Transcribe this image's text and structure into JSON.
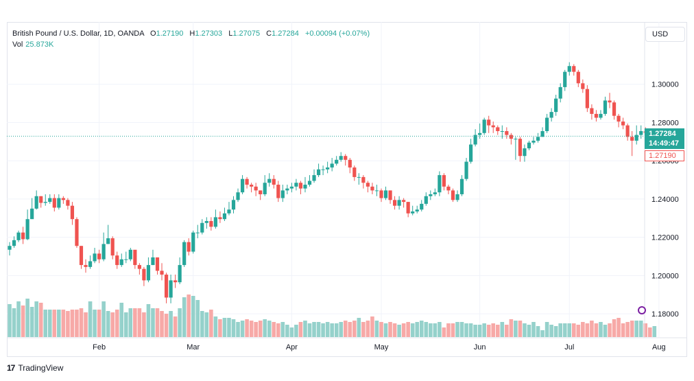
{
  "header": {
    "symbol": "British Pound / U.S. Dollar, 1D, OANDA",
    "open_label": "O",
    "open_value": "1.27190",
    "high_label": "H",
    "high_value": "1.27303",
    "low_label": "L",
    "low_value": "1.27075",
    "close_label": "C",
    "close_value": "1.27284",
    "change": "+0.00094 (+0.07%)"
  },
  "volume": {
    "label": "Vol",
    "value": "25.873K"
  },
  "currency_button": "USD",
  "price_tags": {
    "last": "1.27284",
    "countdown": "14:49:47",
    "open": "1.27190"
  },
  "brand": {
    "logo": "17",
    "name": "TradingView"
  },
  "colors": {
    "up": "#26a69a",
    "down": "#ef5350",
    "up_volume": "#95d1cb",
    "down_volume": "#f7a9a7",
    "grid": "#f0f3fa"
  },
  "chart_data": {
    "type": "candlestick",
    "ylim": [
      1.1675,
      1.3225
    ],
    "y_ticks": [
      "1.18000",
      "1.20000",
      "1.22000",
      "1.24000",
      "1.26000",
      "1.28000",
      "1.30000"
    ],
    "x_ticks": [
      "Feb",
      "Mar",
      "Apr",
      "May",
      "Jun",
      "Jul",
      "Aug"
    ],
    "x_tick_indices": [
      20,
      41,
      63,
      83,
      105,
      125,
      145
    ],
    "last_price": 1.27284,
    "closes": [
      1.2155,
      1.2185,
      1.2225,
      1.219,
      1.2295,
      1.235,
      1.2415,
      1.238,
      1.2385,
      1.2405,
      1.2355,
      1.2405,
      1.2395,
      1.2365,
      1.2295,
      1.2155,
      1.2055,
      1.2045,
      1.2075,
      1.2115,
      1.2085,
      1.2165,
      1.2195,
      1.2105,
      1.2055,
      1.2085,
      1.2085,
      1.2135,
      1.2055,
      1.2035,
      1.1975,
      1.2055,
      1.2095,
      1.2025,
      1.2005,
      1.1885,
      1.1975,
      1.1965,
      1.2055,
      1.2175,
      1.2125,
      1.2225,
      1.2225,
      1.2275,
      1.2285,
      1.2255,
      1.2305,
      1.2295,
      1.2325,
      1.2345,
      1.2395,
      1.2435,
      1.2505,
      1.2475,
      1.2465,
      1.2445,
      1.2425,
      1.2485,
      1.2505,
      1.2475,
      1.2405,
      1.2445,
      1.2455,
      1.2465,
      1.2485,
      1.2455,
      1.2475,
      1.2495,
      1.2525,
      1.2555,
      1.2555,
      1.2565,
      1.2585,
      1.2605,
      1.2625,
      1.2605,
      1.2565,
      1.2515,
      1.2515,
      1.2485,
      1.2465,
      1.2445,
      1.2445,
      1.2405,
      1.2445,
      1.2395,
      1.2365,
      1.2395,
      1.2385,
      1.2325,
      1.2335,
      1.2345,
      1.2375,
      1.2415,
      1.2425,
      1.2435,
      1.2525,
      1.2465,
      1.2445,
      1.2395,
      1.2425,
      1.2505,
      1.2595,
      1.2685,
      1.2735,
      1.2745,
      1.2815,
      1.2785,
      1.2775,
      1.2755,
      1.2755,
      1.2735,
      1.2715,
      1.2715,
      1.2625,
      1.2665,
      1.2695,
      1.2705,
      1.2725,
      1.2755,
      1.2825,
      1.2855,
      1.2925,
      1.2985,
      1.3065,
      1.3095,
      1.3065,
      1.3005,
      1.2975,
      1.2875,
      1.2845,
      1.2825,
      1.2845,
      1.2915,
      1.2905,
      1.2835,
      1.2805,
      1.2785,
      1.2725,
      1.2705,
      1.2735,
      1.2755,
      1.2745,
      1.2719,
      1.2728
    ],
    "highs": [
      1.2175,
      1.2205,
      1.2235,
      1.2255,
      1.2345,
      1.2405,
      1.2445,
      1.2415,
      1.2425,
      1.2425,
      1.2425,
      1.2425,
      1.2415,
      1.2405,
      1.2385,
      1.2305,
      1.2155,
      1.2085,
      1.2105,
      1.2145,
      1.2135,
      1.2225,
      1.2265,
      1.2205,
      1.2125,
      1.2115,
      1.2125,
      1.2145,
      1.2125,
      1.2065,
      1.2045,
      1.2095,
      1.2135,
      1.2095,
      1.2065,
      1.2015,
      1.2005,
      1.2005,
      1.2095,
      1.2185,
      1.2195,
      1.2235,
      1.2265,
      1.2295,
      1.2305,
      1.2305,
      1.2345,
      1.2335,
      1.2355,
      1.2385,
      1.2415,
      1.2455,
      1.2525,
      1.2515,
      1.2485,
      1.2485,
      1.2445,
      1.2525,
      1.2535,
      1.2525,
      1.2495,
      1.2475,
      1.2475,
      1.2485,
      1.2505,
      1.2495,
      1.2515,
      1.2525,
      1.2555,
      1.2585,
      1.2575,
      1.2595,
      1.2615,
      1.2625,
      1.2645,
      1.2635,
      1.2615,
      1.2575,
      1.2535,
      1.2525,
      1.2495,
      1.2485,
      1.2475,
      1.2455,
      1.2465,
      1.2445,
      1.2415,
      1.2415,
      1.2405,
      1.2385,
      1.2365,
      1.2365,
      1.2395,
      1.2435,
      1.2445,
      1.2455,
      1.2545,
      1.2535,
      1.2475,
      1.2455,
      1.2445,
      1.2525,
      1.2615,
      1.2715,
      1.2765,
      1.2795,
      1.2825,
      1.2835,
      1.2805,
      1.2785,
      1.2785,
      1.2775,
      1.2745,
      1.2725,
      1.2725,
      1.2685,
      1.2705,
      1.2725,
      1.2745,
      1.2775,
      1.2845,
      1.2875,
      1.2945,
      1.3005,
      1.3075,
      1.3115,
      1.3105,
      1.3075,
      1.3025,
      1.2995,
      1.2895,
      1.2865,
      1.2865,
      1.2935,
      1.2955,
      1.2915,
      1.2845,
      1.2825,
      1.2795,
      1.2755,
      1.2785,
      1.2785,
      1.2775,
      1.2765,
      1.2735
    ],
    "lows": [
      1.2105,
      1.2145,
      1.2175,
      1.2165,
      1.2185,
      1.2335,
      1.2345,
      1.2355,
      1.2365,
      1.2375,
      1.2335,
      1.2345,
      1.2375,
      1.2345,
      1.2265,
      1.2145,
      1.2035,
      1.2015,
      1.2035,
      1.2065,
      1.2065,
      1.2075,
      1.2165,
      1.2085,
      1.2035,
      1.2045,
      1.2065,
      1.2075,
      1.2035,
      1.2005,
      1.1945,
      1.1965,
      1.2055,
      1.2005,
      1.1975,
      1.1855,
      1.1855,
      1.1935,
      1.1955,
      1.2045,
      1.2105,
      1.2115,
      1.2195,
      1.2215,
      1.2245,
      1.2235,
      1.2245,
      1.2275,
      1.2285,
      1.2315,
      1.2325,
      1.2385,
      1.2425,
      1.2455,
      1.2435,
      1.2415,
      1.2395,
      1.2415,
      1.2465,
      1.2455,
      1.2385,
      1.2385,
      1.2425,
      1.2435,
      1.2445,
      1.2425,
      1.2435,
      1.2465,
      1.2485,
      1.2515,
      1.2525,
      1.2535,
      1.2545,
      1.2575,
      1.2595,
      1.2575,
      1.2535,
      1.2495,
      1.2475,
      1.2455,
      1.2435,
      1.2425,
      1.2415,
      1.2385,
      1.2395,
      1.2375,
      1.2345,
      1.2345,
      1.2355,
      1.2305,
      1.2315,
      1.2325,
      1.2335,
      1.2365,
      1.2395,
      1.2415,
      1.2415,
      1.2445,
      1.2425,
      1.2385,
      1.2385,
      1.2415,
      1.2495,
      1.2585,
      1.2675,
      1.2715,
      1.2735,
      1.2745,
      1.2745,
      1.2735,
      1.2715,
      1.2715,
      1.2685,
      1.2605,
      1.2595,
      1.2595,
      1.2655,
      1.2685,
      1.2695,
      1.2725,
      1.2745,
      1.2805,
      1.2835,
      1.2905,
      1.2965,
      1.3045,
      1.3045,
      1.2985,
      1.2955,
      1.2855,
      1.2815,
      1.2805,
      1.2815,
      1.2835,
      1.2875,
      1.2815,
      1.2775,
      1.2765,
      1.2705,
      1.2625,
      1.2685,
      1.2715,
      1.2715,
      1.2705,
      1.2705
    ],
    "volume_ratio": [
      0.48,
      0.42,
      0.52,
      0.46,
      0.56,
      0.44,
      0.52,
      0.5,
      0.4,
      0.4,
      0.4,
      0.4,
      0.4,
      0.38,
      0.4,
      0.4,
      0.42,
      0.36,
      0.52,
      0.4,
      0.4,
      0.52,
      0.38,
      0.36,
      0.4,
      0.5,
      0.36,
      0.42,
      0.42,
      0.42,
      0.36,
      0.48,
      0.42,
      0.42,
      0.38,
      0.34,
      0.38,
      0.3,
      0.42,
      0.58,
      0.62,
      0.6,
      0.54,
      0.38,
      0.36,
      0.4,
      0.3,
      0.26,
      0.28,
      0.28,
      0.26,
      0.22,
      0.24,
      0.26,
      0.24,
      0.22,
      0.24,
      0.26,
      0.24,
      0.22,
      0.2,
      0.22,
      0.18,
      0.14,
      0.18,
      0.22,
      0.24,
      0.2,
      0.22,
      0.22,
      0.2,
      0.22,
      0.2,
      0.2,
      0.22,
      0.24,
      0.22,
      0.24,
      0.28,
      0.22,
      0.24,
      0.3,
      0.24,
      0.22,
      0.2,
      0.22,
      0.2,
      0.18,
      0.2,
      0.22,
      0.2,
      0.22,
      0.24,
      0.22,
      0.2,
      0.2,
      0.22,
      0.14,
      0.2,
      0.2,
      0.22,
      0.22,
      0.2,
      0.2,
      0.18,
      0.18,
      0.2,
      0.18,
      0.2,
      0.18,
      0.22,
      0.18,
      0.26,
      0.24,
      0.24,
      0.2,
      0.18,
      0.22,
      0.16,
      0.1,
      0.22,
      0.18,
      0.16,
      0.2,
      0.2,
      0.2,
      0.2,
      0.18,
      0.22,
      0.2,
      0.24,
      0.2,
      0.22,
      0.18,
      0.2,
      0.26,
      0.28,
      0.2,
      0.22,
      0.24,
      0.24,
      0.24,
      0.2,
      0.14,
      0.16
    ]
  }
}
